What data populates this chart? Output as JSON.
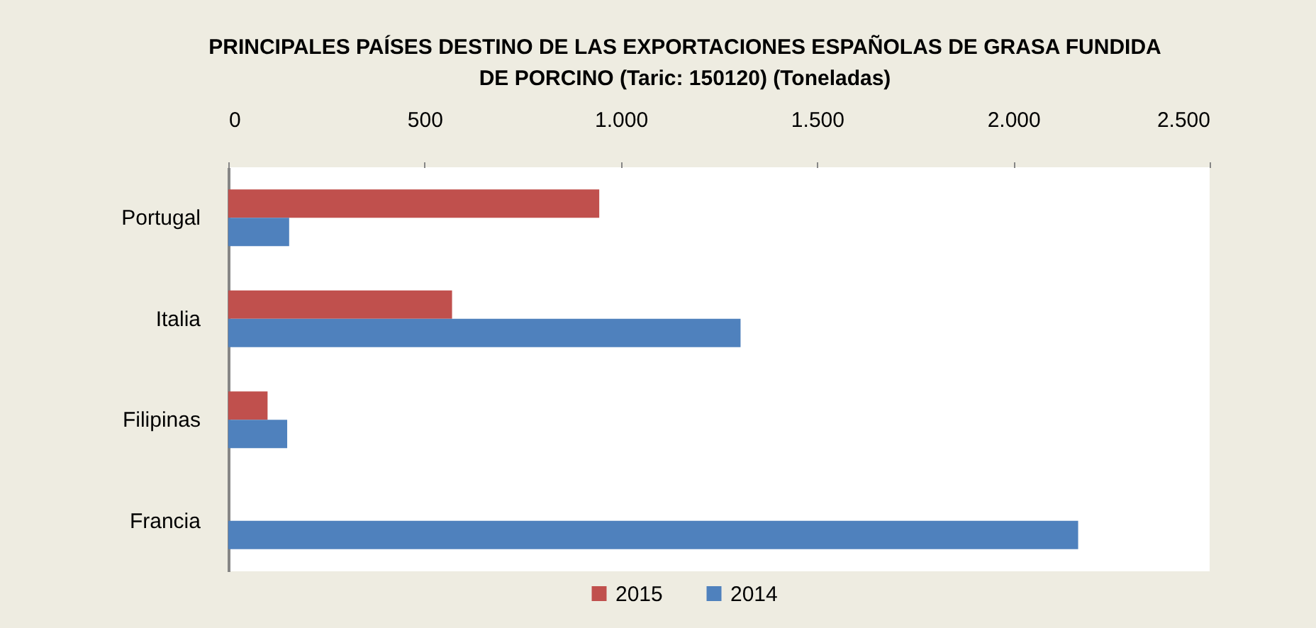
{
  "chart_data": {
    "type": "bar",
    "orientation": "horizontal",
    "title": "PRINCIPALES PAÍSES DESTINO DE LAS EXPORTACIONES ESPAÑOLAS DE  GRASA FUNDIDA\nDE  PORCINO  (Taric: 150120) (Toneladas)",
    "categories": [
      "Portugal",
      "Italia",
      "Filipinas",
      "Francia"
    ],
    "series": [
      {
        "name": "2015",
        "color": "#C0504D",
        "values": [
          945,
          570,
          100,
          null
        ]
      },
      {
        "name": "2014",
        "color": "#4F81BD",
        "values": [
          155,
          1305,
          150,
          2165
        ]
      }
    ],
    "xlim": [
      0,
      2500
    ],
    "xticks": [
      0,
      500,
      {
        "value": 1000,
        "label": "1.000"
      },
      {
        "value": 1500,
        "label": "1.500"
      },
      {
        "value": 2000,
        "label": "2.000"
      },
      {
        "value": 2500,
        "label": "2.500"
      }
    ],
    "legend": "bottom"
  }
}
